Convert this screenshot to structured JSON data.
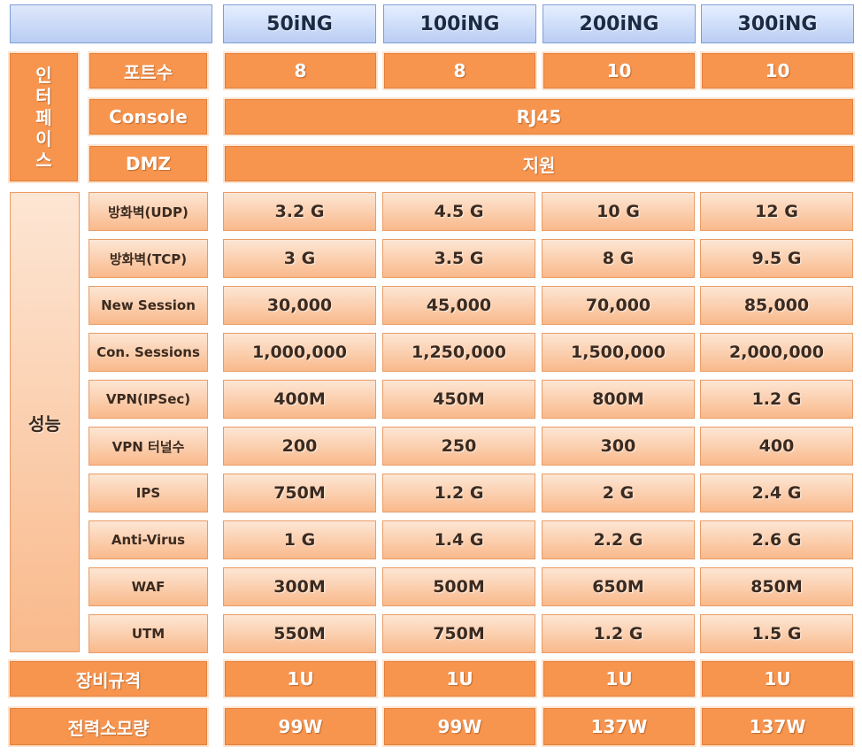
{
  "models": [
    "50iNG",
    "100iNG",
    "200iNG",
    "300iNG"
  ],
  "interface": {
    "group_label_chars": [
      "인",
      "터",
      "페",
      "이",
      "스"
    ],
    "ports": {
      "label": "포트수",
      "values": [
        "8",
        "8",
        "10",
        "10"
      ]
    },
    "console": {
      "label": "Console",
      "value": "RJ45"
    },
    "dmz": {
      "label": "DMZ",
      "value": "지원"
    }
  },
  "performance": {
    "group_label": "성능",
    "rows": [
      {
        "label": "방화벽(UDP)",
        "values": [
          "3.2 G",
          "4.5 G",
          "10 G",
          "12 G"
        ]
      },
      {
        "label": "방화벽(TCP)",
        "values": [
          "3 G",
          "3.5 G",
          "8 G",
          "9.5 G"
        ]
      },
      {
        "label": "New Session",
        "values": [
          "30,000",
          "45,000",
          "70,000",
          "85,000"
        ]
      },
      {
        "label": "Con. Sessions",
        "values": [
          "1,000,000",
          "1,250,000",
          "1,500,000",
          "2,000,000"
        ]
      },
      {
        "label": "VPN(IPSec)",
        "values": [
          "400M",
          "450M",
          "800M",
          "1.2 G"
        ]
      },
      {
        "label": "VPN 터널수",
        "values": [
          "200",
          "250",
          "300",
          "400"
        ]
      },
      {
        "label": "IPS",
        "values": [
          "750M",
          "1.2 G",
          "2 G",
          "2.4 G"
        ]
      },
      {
        "label": "Anti-Virus",
        "values": [
          "1 G",
          "1.4 G",
          "2.2 G",
          "2.6 G"
        ]
      },
      {
        "label": "WAF",
        "values": [
          "300M",
          "500M",
          "650M",
          "850M"
        ]
      },
      {
        "label": "UTM",
        "values": [
          "550M",
          "750M",
          "1.2 G",
          "1.5 G"
        ]
      }
    ]
  },
  "equipment": {
    "label": "장비규격",
    "values": [
      "1U",
      "1U",
      "1U",
      "1U"
    ]
  },
  "power": {
    "label": "전력소모량",
    "values": [
      "99W",
      "99W",
      "137W",
      "137W"
    ]
  },
  "colors": {
    "orange": "#f7954f",
    "peach_top": "#fde6d4",
    "peach_bottom": "#f9b98b",
    "header_top": "#e6efff",
    "header_bottom": "#b9cdf3"
  }
}
